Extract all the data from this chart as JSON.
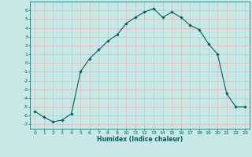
{
  "x": [
    0,
    1,
    2,
    3,
    4,
    5,
    6,
    7,
    8,
    9,
    10,
    11,
    12,
    13,
    14,
    15,
    16,
    17,
    18,
    19,
    20,
    21,
    22,
    23
  ],
  "y": [
    -5.5,
    -6.2,
    -6.7,
    -6.5,
    -5.8,
    -1.0,
    0.5,
    1.5,
    2.5,
    3.2,
    4.5,
    5.2,
    5.8,
    6.2,
    5.2,
    5.8,
    5.2,
    4.3,
    3.8,
    2.2,
    1.0,
    -3.5,
    -5.0,
    -5.0
  ],
  "line_color": "#006060",
  "marker": "D",
  "markersize": 1.8,
  "bg_color": "#c8e8e8",
  "grid_color": "#e0b8b8",
  "xlabel": "Humidex (Indice chaleur)",
  "xlim": [
    -0.5,
    23.5
  ],
  "ylim": [
    -7.5,
    7.0
  ],
  "yticks": [
    6,
    5,
    4,
    3,
    2,
    1,
    0,
    -1,
    -2,
    -3,
    -4,
    -5,
    -6,
    -7
  ],
  "xticks": [
    0,
    1,
    2,
    3,
    4,
    5,
    6,
    7,
    8,
    9,
    10,
    11,
    12,
    13,
    14,
    15,
    16,
    17,
    18,
    19,
    20,
    21,
    22,
    23
  ]
}
